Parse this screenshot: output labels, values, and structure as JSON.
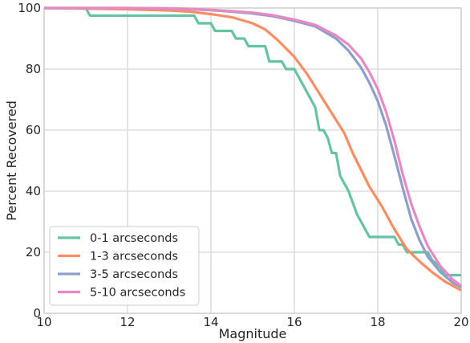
{
  "chart_data": {
    "type": "line",
    "title": "",
    "xlabel": "Magnitude",
    "ylabel": "Percent Recovered",
    "xlim": [
      10,
      20
    ],
    "ylim": [
      0,
      100
    ],
    "xticks": [
      10,
      12,
      14,
      16,
      18,
      20
    ],
    "yticks": [
      0,
      20,
      40,
      60,
      80,
      100
    ],
    "grid": true,
    "legend_position": "bottom-left",
    "series": [
      {
        "name": "0-1 arcseconds",
        "color": "#66c2a5",
        "x": [
          10.0,
          11.0,
          11.1,
          13.6,
          13.7,
          14.0,
          14.1,
          14.5,
          14.6,
          14.8,
          14.9,
          15.3,
          15.4,
          15.7,
          15.8,
          16.0,
          16.2,
          16.4,
          16.5,
          16.6,
          16.7,
          16.8,
          16.9,
          17.0,
          17.1,
          17.2,
          17.3,
          17.5,
          17.6,
          17.8,
          18.4,
          18.5,
          18.6,
          18.7,
          18.8,
          19.2,
          19.3,
          19.5,
          19.6,
          20.0
        ],
        "y": [
          100,
          100,
          97.5,
          97.5,
          95,
          95,
          92.5,
          92.5,
          90,
          90,
          87.5,
          87.5,
          82.5,
          82.5,
          80,
          80,
          75,
          70,
          67.5,
          60,
          60,
          57.5,
          52.5,
          52.5,
          45,
          42.5,
          40,
          32.5,
          30,
          25,
          25,
          22.5,
          22.5,
          20,
          20,
          20,
          17.5,
          15,
          12.5,
          12.5
        ]
      },
      {
        "name": "1-3 arcseconds",
        "color": "#fc8d62",
        "x": [
          10.0,
          11.0,
          12.0,
          13.0,
          13.5,
          14.0,
          14.5,
          15.0,
          15.3,
          15.6,
          16.0,
          16.3,
          16.6,
          16.9,
          17.2,
          17.4,
          17.6,
          17.8,
          18.1,
          18.4,
          18.7,
          19.0,
          19.3,
          19.6,
          20.0
        ],
        "y": [
          100,
          99.8,
          99.6,
          99.2,
          98.8,
          98.0,
          97.0,
          95.0,
          93.0,
          89.5,
          84.0,
          78.5,
          72.0,
          65.5,
          59.0,
          52.5,
          47.0,
          41.5,
          35.0,
          27.5,
          21.0,
          17.0,
          13.5,
          10.5,
          7.5
        ]
      },
      {
        "name": "3-5 arcseconds",
        "color": "#8da0cb",
        "x": [
          10.0,
          11.0,
          12.0,
          13.0,
          13.5,
          14.0,
          14.5,
          15.0,
          15.5,
          16.0,
          16.5,
          17.0,
          17.3,
          17.6,
          17.8,
          18.0,
          18.2,
          18.4,
          18.6,
          18.8,
          19.0,
          19.2,
          19.5,
          19.8,
          20.0
        ],
        "y": [
          100,
          100,
          100,
          99.8,
          99.6,
          99.3,
          98.8,
          98.2,
          97.3,
          95.8,
          94.0,
          90.0,
          86.0,
          80.5,
          75.5,
          69.5,
          61.5,
          51.5,
          41.0,
          31.0,
          24.0,
          18.5,
          13.5,
          10.0,
          8.5
        ]
      },
      {
        "name": "5-10 arcseconds",
        "color": "#e78ac3",
        "x": [
          10.0,
          11.0,
          12.0,
          13.0,
          13.5,
          14.0,
          14.5,
          15.0,
          15.5,
          16.0,
          16.5,
          17.0,
          17.3,
          17.6,
          17.8,
          18.0,
          18.2,
          18.4,
          18.6,
          18.8,
          19.0,
          19.2,
          19.5,
          19.8,
          20.0
        ],
        "y": [
          100,
          100,
          100,
          99.9,
          99.7,
          99.4,
          99.0,
          98.5,
          97.6,
          96.2,
          94.5,
          91.0,
          88.0,
          83.5,
          79.0,
          73.5,
          66.0,
          56.5,
          45.5,
          36.0,
          28.5,
          22.0,
          15.5,
          11.0,
          9.0
        ]
      }
    ]
  }
}
